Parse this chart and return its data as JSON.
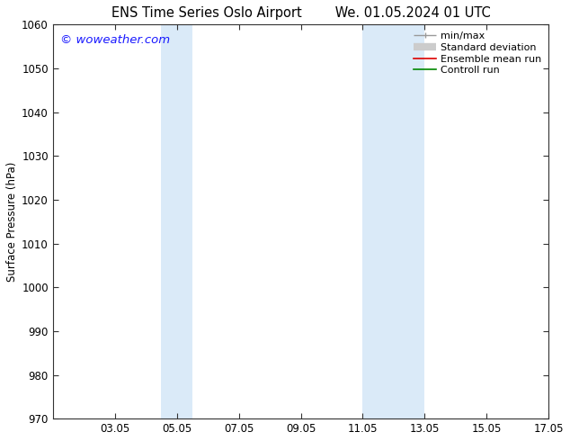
{
  "title_left": "ENS Time Series Oslo Airport",
  "title_right": "We. 01.05.2024 01 UTC",
  "ylabel": "Surface Pressure (hPa)",
  "xlim": [
    1.05,
    17.05
  ],
  "ylim": [
    970,
    1060
  ],
  "yticks": [
    970,
    980,
    990,
    1000,
    1010,
    1020,
    1030,
    1040,
    1050,
    1060
  ],
  "xtick_labels": [
    "03.05",
    "05.05",
    "07.05",
    "09.05",
    "11.05",
    "13.05",
    "15.05",
    "17.05"
  ],
  "xtick_positions": [
    3.05,
    5.05,
    7.05,
    9.05,
    11.05,
    13.05,
    15.05,
    17.05
  ],
  "shaded_bands": [
    {
      "xmin": 4.55,
      "xmax": 5.55
    },
    {
      "xmin": 11.05,
      "xmax": 13.05
    }
  ],
  "shade_color": "#daeaf8",
  "background_color": "#ffffff",
  "watermark_text": "© woweather.com",
  "watermark_color": "#1a1aff",
  "legend_items": [
    {
      "label": "min/max",
      "color": "#999999",
      "lw": 1.0,
      "style": "minmax"
    },
    {
      "label": "Standard deviation",
      "color": "#cccccc",
      "lw": 6,
      "style": "bar"
    },
    {
      "label": "Ensemble mean run",
      "color": "#dd0000",
      "lw": 1.2,
      "style": "line"
    },
    {
      "label": "Controll run",
      "color": "#008800",
      "lw": 1.2,
      "style": "line"
    }
  ],
  "title_fontsize": 10.5,
  "tick_fontsize": 8.5,
  "ylabel_fontsize": 8.5,
  "legend_fontsize": 8.0,
  "watermark_fontsize": 9.5
}
